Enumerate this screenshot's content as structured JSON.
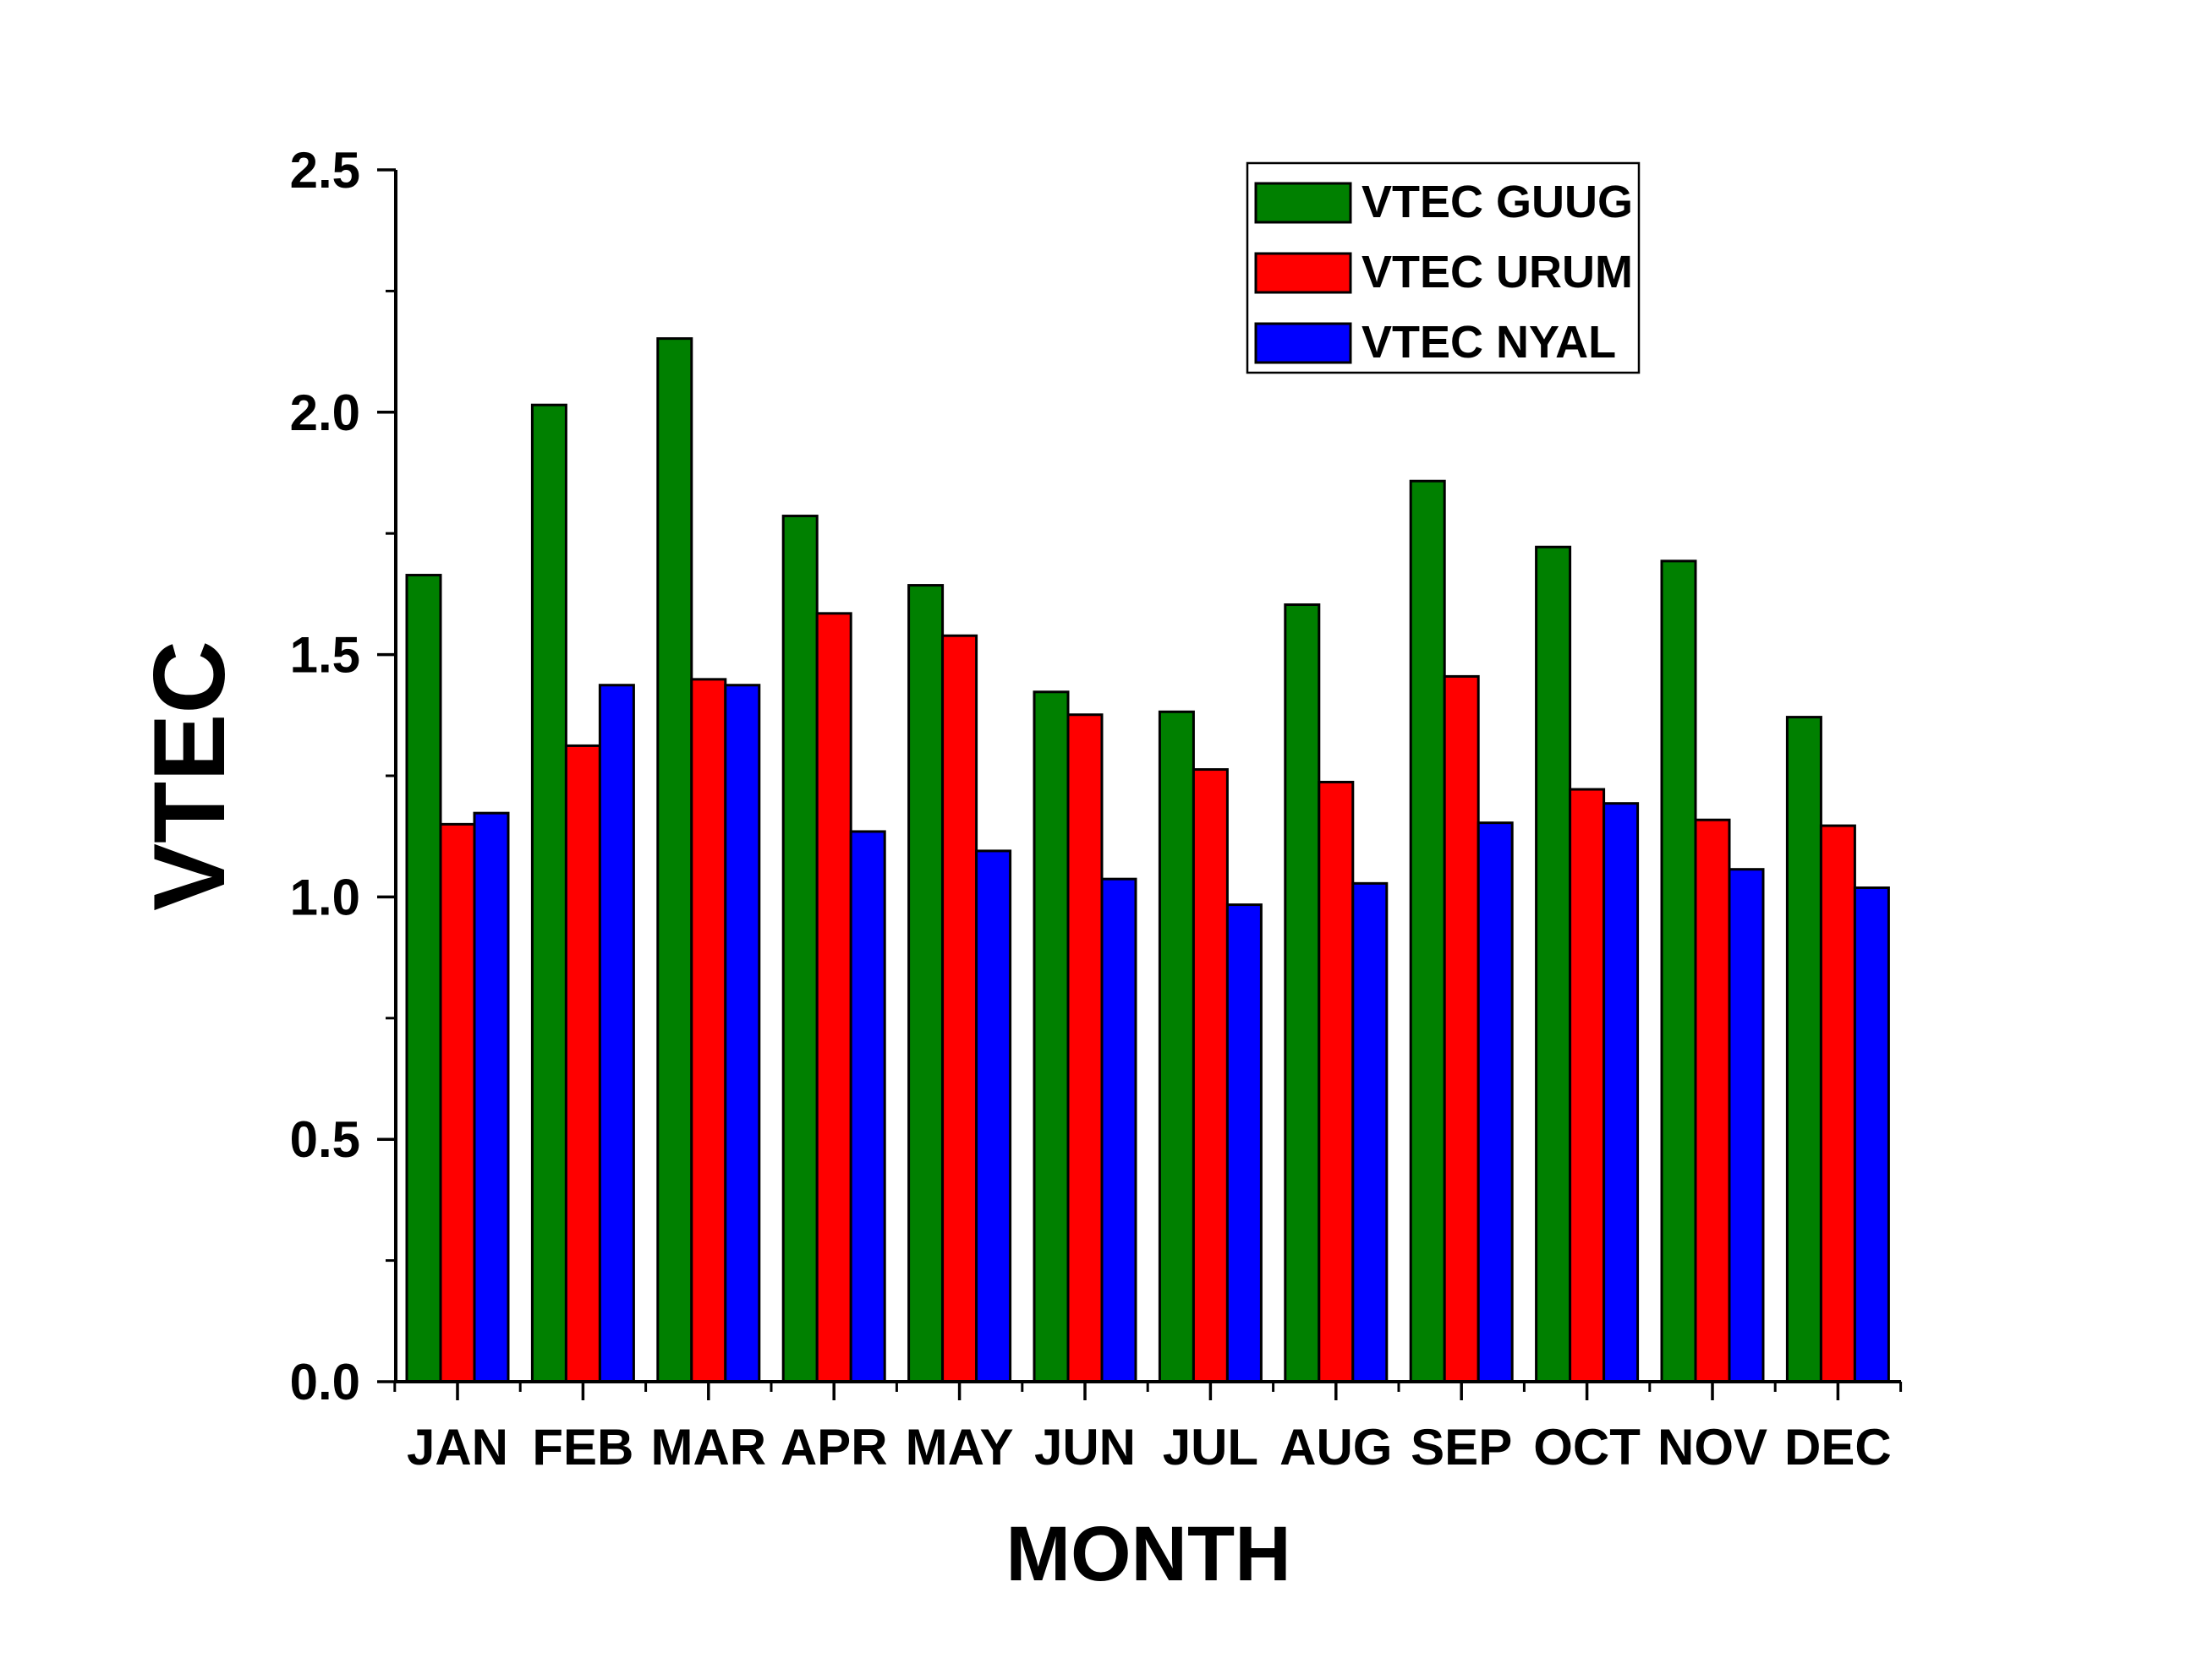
{
  "chart_data": {
    "type": "bar",
    "title": "",
    "xlabel": "MONTH",
    "ylabel": "VTEC",
    "ylim": [
      0,
      2.5
    ],
    "yticks": [
      "0.0",
      "0.5",
      "1.0",
      "1.5",
      "2.0",
      "2.5"
    ],
    "ytick_values": [
      0,
      0.5,
      1.0,
      1.5,
      2.0,
      2.5
    ],
    "grid": false,
    "legend_position": "top-right",
    "categories": [
      "JAN",
      "FEB",
      "MAR",
      "APR",
      "MAY",
      "JUN",
      "JUL",
      "AUG",
      "SEP",
      "OCT",
      "NOV",
      "DEC"
    ],
    "series": [
      {
        "name": "VTEC GUUG",
        "color": "#008000",
        "values": [
          1.664,
          2.015,
          2.152,
          1.786,
          1.643,
          1.423,
          1.382,
          1.603,
          1.858,
          1.722,
          1.693,
          1.371
        ]
      },
      {
        "name": "VTEC URUM",
        "color": "#ff0000",
        "values": [
          1.15,
          1.312,
          1.449,
          1.585,
          1.539,
          1.376,
          1.263,
          1.237,
          1.455,
          1.222,
          1.159,
          1.147
        ]
      },
      {
        "name": "VTEC NYAL",
        "color": "#0000ff",
        "values": [
          1.173,
          1.437,
          1.437,
          1.135,
          1.095,
          1.037,
          0.984,
          1.028,
          1.153,
          1.193,
          1.057,
          1.019
        ]
      }
    ]
  }
}
